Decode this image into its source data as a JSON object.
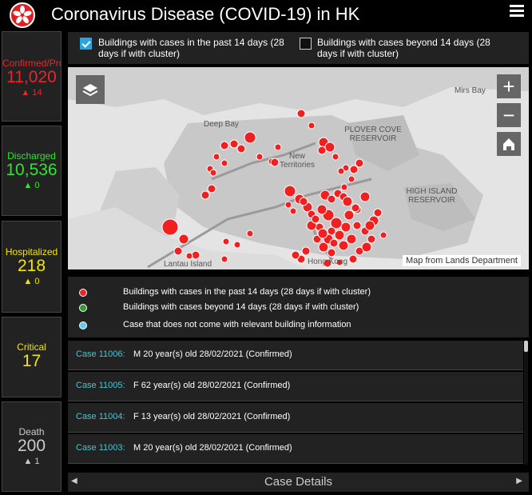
{
  "header": {
    "title": "Coronavirus Disease (COVID-19) in HK"
  },
  "stats": {
    "confirmed": {
      "label": "Confirmed/Probable",
      "value": "11,020",
      "delta": "14",
      "color": "#e8262c"
    },
    "discharged": {
      "label": "Discharged",
      "value": "10,536",
      "delta": "0",
      "color": "#2ee62e"
    },
    "hospitalized": {
      "label": "Hospitalized",
      "value": "218",
      "delta": "0",
      "color": "#f2e600"
    },
    "critical": {
      "label": "Critical",
      "value": "17",
      "color": "#f2e600"
    },
    "death": {
      "label": "Death",
      "value": "200",
      "delta": "1",
      "color": "#cccccc"
    }
  },
  "filters": {
    "recent": {
      "label": "Buildings with cases in the past 14 days (28 days if with cluster)",
      "checked": true
    },
    "older": {
      "label": "Buildings with cases beyond 14 days (28 days if with cluster)",
      "checked": false
    }
  },
  "map": {
    "labels": {
      "mirs_bay": "Mirs Bay",
      "deep_bay": "Deep Bay",
      "new_territories": "New Territories",
      "plover_cove": "PLOVER COVE RESERVOIR",
      "high_island": "HIGH ISLAND RESERVOIR",
      "lantau": "Lantau Island",
      "hong_kong": "Hong Kong"
    },
    "attribution": "Map from Lands Department",
    "zoom_in": "+",
    "zoom_out": "−",
    "marker_color": "#f02020"
  },
  "legend": [
    {
      "text": "Buildings with cases in the past 14 days (28 days if with cluster)",
      "color": "#e8262c"
    },
    {
      "text": "Buildings with cases beyond 14 days (28 days if with cluster)",
      "color": "#2e9e2e"
    },
    {
      "text": "Case that does not come with relevant building information",
      "color": "#66ccee"
    }
  ],
  "cases": [
    {
      "id": "Case 11006:",
      "info": "M  20 year(s) old  28/02/2021 (Confirmed)"
    },
    {
      "id": "Case 11005:",
      "info": "F  62 year(s) old  28/02/2021 (Confirmed)"
    },
    {
      "id": "Case 11004:",
      "info": "F  13 year(s) old  28/02/2021 (Confirmed)"
    },
    {
      "id": "Case 11003:",
      "info": "M  20 year(s) old  28/02/2021 (Confirmed)"
    }
  ],
  "footer": {
    "title": "Case Details",
    "prev": "◀",
    "next": "▶"
  }
}
